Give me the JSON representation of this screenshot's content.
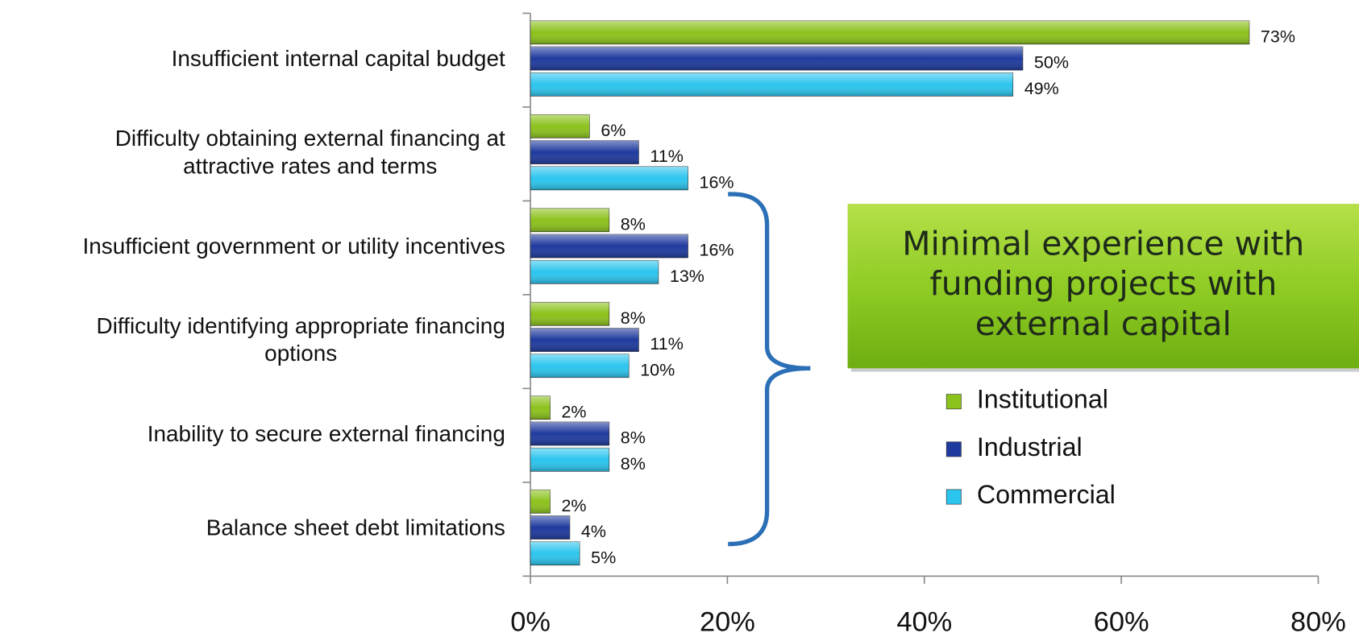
{
  "chart_data": {
    "type": "hbar",
    "categories": [
      "Insufficient internal capital budget",
      "Difficulty obtaining external financing at\nattractive rates and terms",
      "Insufficient government or utility incentives",
      "Difficulty identifying appropriate financing\noptions",
      "Inability to secure external financing",
      "Balance sheet debt limitations"
    ],
    "series": [
      {
        "name": "Institutional",
        "color": "#8cc21c",
        "values": [
          73,
          6,
          8,
          8,
          2,
          2
        ],
        "value_labels": [
          "73%",
          "6%",
          "8%",
          "8%",
          "2%",
          "2%"
        ]
      },
      {
        "name": "Industrial",
        "color": "#1f3a9e",
        "values": [
          50,
          11,
          16,
          11,
          8,
          4
        ],
        "value_labels": [
          "50%",
          "11%",
          "16%",
          "11%",
          "8%",
          "4%"
        ]
      },
      {
        "name": "Commercial",
        "color": "#2cc5ee",
        "values": [
          49,
          16,
          13,
          10,
          8,
          5
        ],
        "value_labels": [
          "49%",
          "16%",
          "13%",
          "10%",
          "8%",
          "5%"
        ]
      }
    ],
    "xlim": [
      0,
      80
    ],
    "xticks": [
      {
        "value": 0,
        "label": "0%"
      },
      {
        "value": 20,
        "label": "20%"
      },
      {
        "value": 40,
        "label": "40%"
      },
      {
        "value": 60,
        "label": "60%"
      },
      {
        "value": 80,
        "label": "80%"
      }
    ],
    "grid": false,
    "legend": "right",
    "annotation": "Minimal experience with\nfunding projects with\nexternal capital"
  }
}
